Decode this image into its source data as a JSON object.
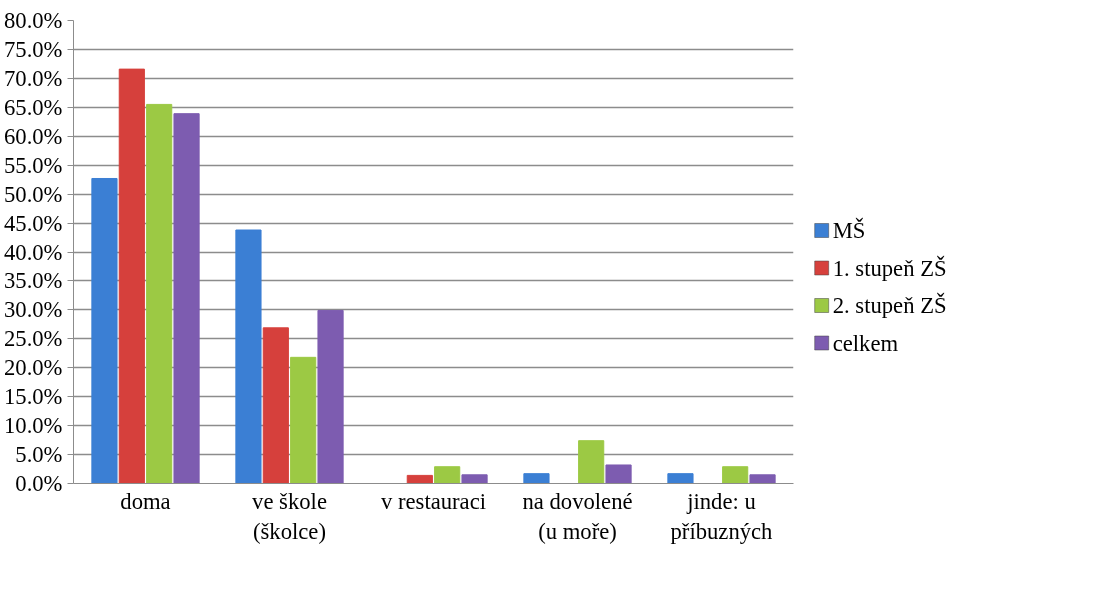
{
  "chart_data": {
    "type": "bar",
    "categories": [
      "doma",
      "ve škole (školce)",
      "v restauraci",
      "na dovolené (u moře)",
      "jinde: u příbuzných"
    ],
    "series": [
      {
        "name": "MŠ",
        "color": "#3b7fd4",
        "values": [
          52.7,
          43.8,
          0,
          1.7,
          1.7
        ]
      },
      {
        "name": "1. stupeň ZŠ",
        "color": "#d6403c",
        "values": [
          71.6,
          26.9,
          1.4,
          0,
          0
        ]
      },
      {
        "name": "2. stupeň ZŠ",
        "color": "#9cc944",
        "values": [
          65.5,
          21.8,
          2.9,
          7.4,
          2.9
        ]
      },
      {
        "name": "celkem",
        "color": "#7d5cb0",
        "values": [
          63.9,
          29.9,
          1.5,
          3.2,
          1.5
        ]
      }
    ],
    "ylim": [
      0,
      80
    ],
    "yticks": [
      {
        "value": 0,
        "label": "0.0%"
      },
      {
        "value": 5,
        "label": "5.0%"
      },
      {
        "value": 10,
        "label": "10.0%"
      },
      {
        "value": 15,
        "label": "15.0%"
      },
      {
        "value": 20,
        "label": "20.0%"
      },
      {
        "value": 25,
        "label": "25.0%"
      },
      {
        "value": 30,
        "label": "30.0%"
      },
      {
        "value": 35,
        "label": "35.0%"
      },
      {
        "value": 40,
        "label": "40.0%"
      },
      {
        "value": 45,
        "label": "45.0%"
      },
      {
        "value": 50,
        "label": "50.0%"
      },
      {
        "value": 55,
        "label": "55.0%"
      },
      {
        "value": 60,
        "label": "60.0%"
      },
      {
        "value": 65,
        "label": "65.0%"
      },
      {
        "value": 70,
        "label": "70.0%"
      },
      {
        "value": 75,
        "label": "75.0%"
      },
      {
        "value": 80,
        "label": "80.0%"
      }
    ],
    "grid": "y",
    "legend": "right"
  }
}
